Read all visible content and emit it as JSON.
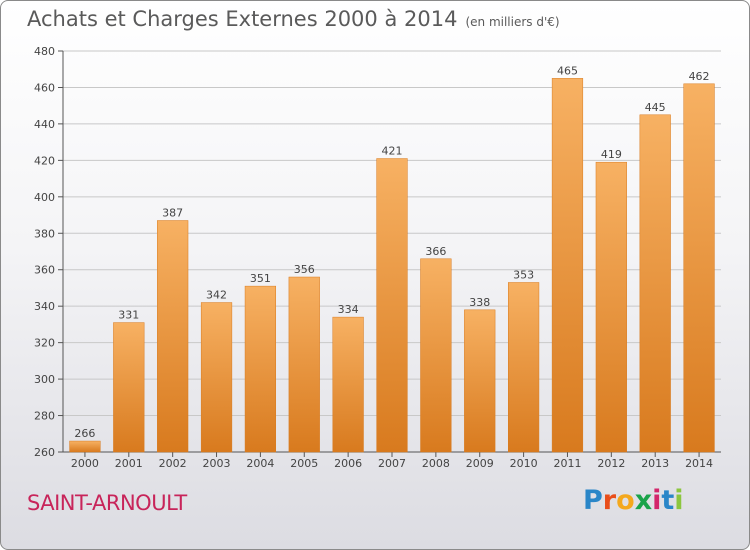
{
  "header": {
    "title": "Achats et Charges Externes 2000 à 2014",
    "unit": "(en milliers d'€)"
  },
  "footer": {
    "place": "SAINT-ARNOULT",
    "logo": "Proxiti"
  },
  "colors": {
    "bar": "#f29a3f",
    "bar_light": "#f7b163",
    "bar_dark": "#d87a1e",
    "grid": "#c8c8c8",
    "place": "#c8245a"
  },
  "chart_data": {
    "type": "bar",
    "title": "Achats et Charges Externes 2000 à 2014",
    "subtitle": "(en milliers d'€)",
    "categories": [
      "2000",
      "2001",
      "2002",
      "2003",
      "2004",
      "2005",
      "2006",
      "2007",
      "2008",
      "2009",
      "2010",
      "2011",
      "2012",
      "2013",
      "2014"
    ],
    "values": [
      266,
      331,
      387,
      342,
      351,
      356,
      334,
      421,
      366,
      338,
      353,
      465,
      419,
      445,
      462
    ],
    "ylim": [
      260,
      480
    ],
    "yticks": [
      260,
      280,
      300,
      320,
      340,
      360,
      380,
      400,
      420,
      440,
      460,
      480
    ],
    "grid": true,
    "data_labels": true
  }
}
